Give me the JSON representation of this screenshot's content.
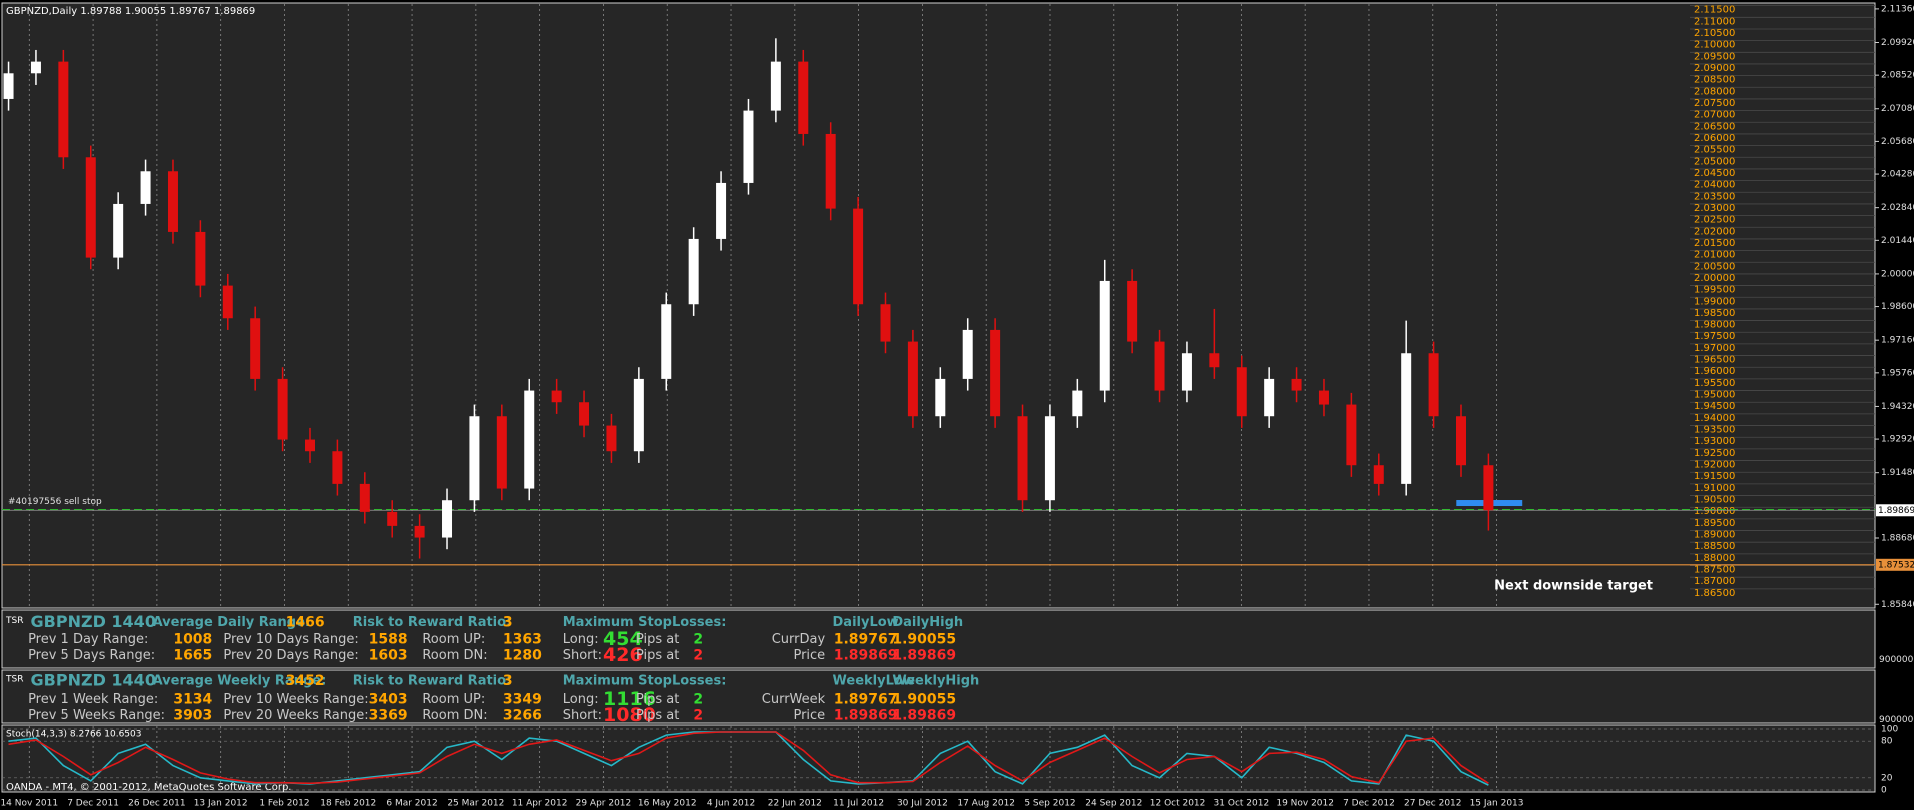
{
  "header": {
    "title": "GBPNZD,Daily  1.89788 1.90055 1.89767 1.89869"
  },
  "chart_data": [
    {
      "type": "candlestick",
      "categories": [
        "14 Nov 2011",
        "7 Dec 2011",
        "26 Dec 2011",
        "13 Jan 2012",
        "1 Feb 2012",
        "18 Feb 2012",
        "6 Mar 2012",
        "25 Mar 2012",
        "11 Apr 2012",
        "29 Apr 2012",
        "16 May 2012",
        "4 Jun 2012",
        "22 Jun 2012",
        "11 Jul 2012",
        "30 Jul 2012",
        "17 Aug 2012",
        "5 Sep 2012",
        "24 Sep 2012",
        "12 Oct 2012",
        "31 Oct 2012",
        "19 Nov 2012",
        "7 Dec 2012",
        "27 Dec 2012",
        "15 Jan 2013"
      ],
      "open": [
        2.075,
        2.086,
        2.091,
        2.05,
        2.007,
        2.03,
        2.044,
        2.018,
        1.995,
        1.981,
        1.955,
        1.929,
        1.924,
        1.91,
        1.898,
        1.892,
        1.887,
        1.903,
        1.939,
        1.908,
        1.95,
        1.945,
        1.935,
        1.924,
        1.955,
        1.987,
        2.015,
        2.039,
        2.07,
        2.091,
        2.06,
        2.028,
        1.987,
        1.971,
        1.939,
        1.955,
        1.976,
        1.939,
        1.903,
        1.939,
        1.95,
        1.997,
        1.971,
        1.95,
        1.966,
        1.96,
        1.939,
        1.955,
        1.95,
        1.944,
        1.918,
        1.91,
        1.966,
        1.939,
        1.918
      ],
      "high": [
        2.091,
        2.096,
        2.096,
        2.055,
        2.035,
        2.049,
        2.049,
        2.023,
        2.0,
        1.986,
        1.96,
        1.934,
        1.929,
        1.915,
        1.903,
        1.897,
        1.908,
        1.944,
        1.944,
        1.955,
        1.955,
        1.95,
        1.94,
        1.96,
        1.992,
        2.02,
        2.044,
        2.075,
        2.101,
        2.096,
        2.065,
        2.033,
        1.992,
        1.976,
        1.96,
        1.981,
        1.981,
        1.944,
        1.944,
        1.955,
        2.006,
        2.002,
        1.976,
        1.971,
        1.985,
        1.965,
        1.96,
        1.96,
        1.955,
        1.949,
        1.923,
        1.98,
        1.971,
        1.944,
        1.923
      ],
      "low": [
        2.07,
        2.081,
        2.045,
        2.002,
        2.002,
        2.025,
        2.013,
        1.99,
        1.976,
        1.95,
        1.924,
        1.919,
        1.905,
        1.893,
        1.887,
        1.878,
        1.882,
        1.898,
        1.903,
        1.903,
        1.94,
        1.93,
        1.919,
        1.919,
        1.95,
        1.982,
        2.01,
        2.034,
        2.065,
        2.055,
        2.023,
        1.982,
        1.966,
        1.934,
        1.934,
        1.95,
        1.934,
        1.898,
        1.898,
        1.934,
        1.945,
        1.966,
        1.945,
        1.945,
        1.955,
        1.934,
        1.934,
        1.945,
        1.939,
        1.913,
        1.905,
        1.905,
        1.934,
        1.913,
        1.89
      ],
      "close": [
        2.086,
        2.091,
        2.05,
        2.007,
        2.03,
        2.044,
        2.018,
        1.995,
        1.981,
        1.955,
        1.929,
        1.924,
        1.91,
        1.898,
        1.892,
        1.887,
        1.903,
        1.939,
        1.908,
        1.95,
        1.945,
        1.935,
        1.924,
        1.955,
        1.987,
        2.015,
        2.039,
        2.07,
        2.091,
        2.06,
        2.028,
        1.987,
        1.971,
        1.939,
        1.955,
        1.976,
        1.939,
        1.903,
        1.939,
        1.95,
        1.997,
        1.971,
        1.95,
        1.966,
        1.96,
        1.939,
        1.955,
        1.95,
        1.944,
        1.918,
        1.91,
        1.966,
        1.939,
        1.918,
        1.8987
      ],
      "up_color": "#ffffff",
      "down_color": "#e01010",
      "ylim": [
        1.8568,
        2.1157
      ],
      "yticks": [
        {
          "value": 2.1136,
          "label": "2.11360"
        },
        {
          "value": 2.0992,
          "label": "2.09920"
        },
        {
          "value": 2.0852,
          "label": "2.08520"
        },
        {
          "value": 2.0708,
          "label": "2.07080"
        },
        {
          "value": 2.0568,
          "label": "2.05680"
        },
        {
          "value": 2.0428,
          "label": "2.04280"
        },
        {
          "value": 2.0284,
          "label": "2.02840"
        },
        {
          "value": 2.0144,
          "label": "2.01440"
        },
        {
          "value": 2.0,
          "label": "2.00000"
        },
        {
          "value": 1.986,
          "label": "1.98600"
        },
        {
          "value": 1.9716,
          "label": "1.97160"
        },
        {
          "value": 1.9576,
          "label": "1.95760"
        },
        {
          "value": 1.9432,
          "label": "1.94320"
        },
        {
          "value": 1.9292,
          "label": "1.92920"
        },
        {
          "value": 1.9148,
          "label": "1.91480"
        },
        {
          "value": 1.8868,
          "label": "1.88680"
        },
        {
          "value": 1.8584,
          "label": "1.85840"
        }
      ],
      "levels": [
        {
          "value": 2.115,
          "label": "2.11500"
        },
        {
          "value": 2.11,
          "label": "2.11000"
        },
        {
          "value": 2.105,
          "label": "2.10500"
        },
        {
          "value": 2.1,
          "label": "2.10000"
        },
        {
          "value": 2.095,
          "label": "2.09500"
        },
        {
          "value": 2.09,
          "label": "2.09000"
        },
        {
          "value": 2.085,
          "label": "2.08500"
        },
        {
          "value": 2.08,
          "label": "2.08000"
        },
        {
          "value": 2.075,
          "label": "2.07500"
        },
        {
          "value": 2.07,
          "label": "2.07000"
        },
        {
          "value": 2.065,
          "label": "2.06500"
        },
        {
          "value": 2.06,
          "label": "2.06000"
        },
        {
          "value": 2.055,
          "label": "2.05500"
        },
        {
          "value": 2.05,
          "label": "2.05000"
        },
        {
          "value": 2.045,
          "label": "2.04500"
        },
        {
          "value": 2.04,
          "label": "2.04000"
        },
        {
          "value": 2.035,
          "label": "2.03500"
        },
        {
          "value": 2.03,
          "label": "2.03000"
        },
        {
          "value": 2.025,
          "label": "2.02500"
        },
        {
          "value": 2.02,
          "label": "2.02000"
        },
        {
          "value": 2.015,
          "label": "2.01500"
        },
        {
          "value": 2.01,
          "label": "2.01000"
        },
        {
          "value": 2.005,
          "label": "2.00500"
        },
        {
          "value": 2.0,
          "label": "2.00000"
        },
        {
          "value": 1.995,
          "label": "1.99500"
        },
        {
          "value": 1.99,
          "label": "1.99000"
        },
        {
          "value": 1.985,
          "label": "1.98500"
        },
        {
          "value": 1.98,
          "label": "1.98000"
        },
        {
          "value": 1.975,
          "label": "1.97500"
        },
        {
          "value": 1.97,
          "label": "1.97000"
        },
        {
          "value": 1.965,
          "label": "1.96500"
        },
        {
          "value": 1.96,
          "label": "1.96000"
        },
        {
          "value": 1.955,
          "label": "1.95500"
        },
        {
          "value": 1.95,
          "label": "1.95000"
        },
        {
          "value": 1.945,
          "label": "1.94500"
        },
        {
          "value": 1.94,
          "label": "1.94000"
        },
        {
          "value": 1.935,
          "label": "1.93500"
        },
        {
          "value": 1.93,
          "label": "1.93000"
        },
        {
          "value": 1.925,
          "label": "1.92500"
        },
        {
          "value": 1.92,
          "label": "1.92000"
        },
        {
          "value": 1.915,
          "label": "1.91500"
        },
        {
          "value": 1.91,
          "label": "1.91000"
        },
        {
          "value": 1.905,
          "label": "1.90500"
        },
        {
          "value": 1.9,
          "label": "1.90000"
        },
        {
          "value": 1.895,
          "label": "1.89500"
        },
        {
          "value": 1.89,
          "label": "1.89000"
        },
        {
          "value": 1.885,
          "label": "1.88500"
        },
        {
          "value": 1.88,
          "label": "1.88000"
        },
        {
          "value": 1.875,
          "label": "1.87500"
        },
        {
          "value": 1.87,
          "label": "1.87000"
        },
        {
          "value": 1.865,
          "label": "1.86500"
        }
      ],
      "price_level": 1.89869,
      "target_level": 1.87532,
      "sell_stop_level": 1.899,
      "entry_level": 1.9018,
      "order_label": "#40197556 sell stop",
      "target_note": "Next downside target",
      "grid": true
    },
    {
      "type": "line",
      "title": "Stoch(14,3,3) 8.2766 10.6503",
      "series": [
        {
          "color": "#27b8c8",
          "values": [
            80,
            85,
            40,
            15,
            60,
            75,
            40,
            20,
            15,
            10,
            12,
            10,
            15,
            20,
            25,
            30,
            70,
            80,
            50,
            85,
            80,
            60,
            40,
            70,
            90,
            95,
            95,
            95,
            95,
            50,
            15,
            10,
            12,
            15,
            60,
            80,
            30,
            10,
            60,
            70,
            90,
            40,
            20,
            60,
            55,
            20,
            70,
            60,
            45,
            15,
            10,
            90,
            80,
            30,
            8
          ]
        },
        {
          "color": "#e01818",
          "values": [
            75,
            82,
            55,
            25,
            45,
            70,
            50,
            28,
            18,
            12,
            12,
            11,
            13,
            18,
            23,
            28,
            55,
            75,
            60,
            75,
            82,
            65,
            48,
            60,
            85,
            93,
            95,
            95,
            95,
            65,
            25,
            12,
            12,
            14,
            45,
            72,
            40,
            15,
            45,
            65,
            85,
            55,
            28,
            50,
            55,
            30,
            60,
            62,
            50,
            22,
            12,
            80,
            85,
            40,
            11
          ]
        }
      ],
      "ylim": [
        0,
        100
      ],
      "yticks": [
        0,
        20,
        80,
        100
      ]
    }
  ],
  "panels": [
    {
      "tag": "TSR",
      "axis": "9000000",
      "head": [
        "GBPNZD 1440",
        "Average Daily Range:",
        "1466",
        "Risk to Reward Ratio:",
        "3",
        "Maximum StopLosses:",
        "DailyLow",
        "DailyHigh"
      ],
      "rows": [
        [
          "Prev 1 Day Range:",
          "1008",
          "Prev 10 Days Range:",
          "1588",
          "Room UP:",
          "1363",
          "Long:",
          "454",
          "Pips at",
          "2",
          "CurrDay",
          "1.89767",
          "1.90055"
        ],
        [
          "Prev 5 Days Range:",
          "1665",
          "Prev 20 Days Range:",
          "1603",
          "Room DN:",
          "1280",
          "Short:",
          "426",
          "Pips at",
          "2",
          "Price",
          "1.89869",
          "1.89869"
        ]
      ]
    },
    {
      "tag": "TSR",
      "axis": "9000000",
      "head": [
        "GBPNZD 1440",
        "Average Weekly Range:",
        "3452",
        "Risk to Reward Ratio:",
        "3",
        "Maximum StopLosses:",
        "WeeklyLow",
        "WeeklyHigh"
      ],
      "rows": [
        [
          "Prev 1 Week Range:",
          "3134",
          "Prev 10 Weeks Range:",
          "3403",
          "Room UP:",
          "3349",
          "Long:",
          "1116",
          "Pips at",
          "2",
          "CurrWeek",
          "1.89767",
          "1.90055"
        ],
        [
          "Prev 5 Weeks Range:",
          "3903",
          "Prev 20 Weeks Range:",
          "3369",
          "Room DN:",
          "3266",
          "Short:",
          "1080",
          "Pips at",
          "2",
          "Price",
          "1.89869",
          "1.89869"
        ]
      ]
    }
  ],
  "footer": {
    "copyright": "OANDA - MT4, © 2001-2012, MetaQuotes Software Corp."
  }
}
